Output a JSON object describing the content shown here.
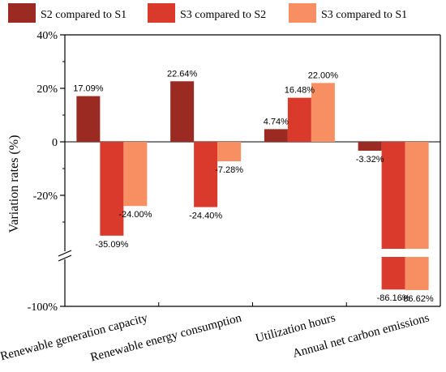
{
  "chart_data": {
    "type": "bar",
    "ylabel": "Variation rates (%)",
    "y_ticks": [
      "40%",
      "20%",
      "0",
      "-20%",
      "-100%"
    ],
    "y_axis_break": "between -40% and -80%",
    "categories": [
      "Renewable generation capacity",
      "Renewable energy consumption",
      "Utilization hours",
      "Annual net carbon emissions"
    ],
    "series": [
      {
        "name": "S2 compared to S1",
        "color": "#9a2a22",
        "values": [
          17.09,
          22.64,
          4.74,
          -3.32
        ],
        "labels": [
          "17.09%",
          "22.64%",
          "4.74%",
          "-3.32%"
        ]
      },
      {
        "name": "S3 compared to S2",
        "color": "#d93a2b",
        "values": [
          -35.09,
          -24.4,
          16.48,
          -86.16
        ],
        "labels": [
          "-35.09%",
          "-24.40%",
          "16.48%",
          "-86.16%"
        ]
      },
      {
        "name": "S3 compared to S1",
        "color": "#f78f63",
        "values": [
          -24.0,
          -7.28,
          22.0,
          -86.62
        ],
        "labels": [
          "-24.00%",
          "-7.28%",
          "22.00%",
          "-86.62%"
        ]
      }
    ],
    "legend_position": "top"
  }
}
